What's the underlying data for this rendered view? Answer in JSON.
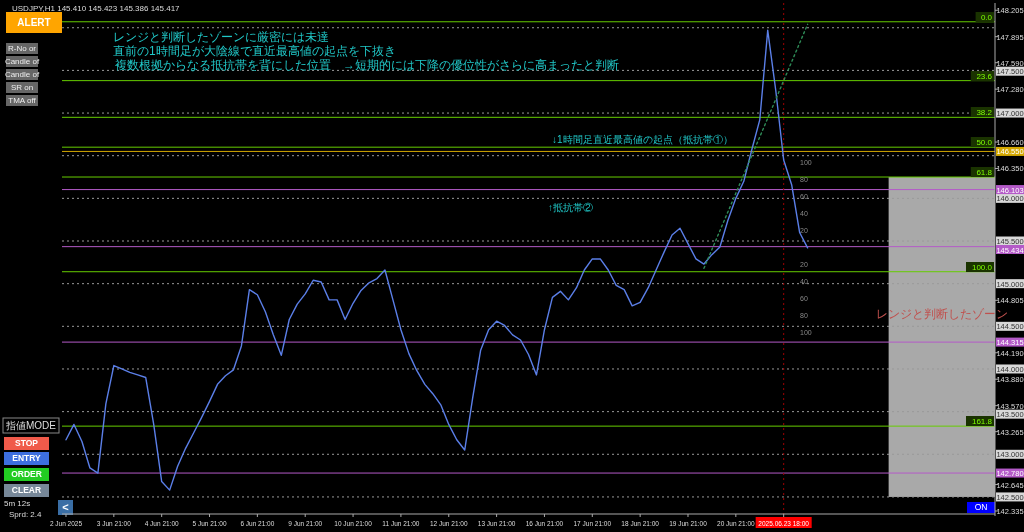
{
  "chart_data": {
    "type": "line",
    "title": "USDJPY,H1 145.410 145.423 145.386 145.417",
    "categories": [
      "2 Jun 2025",
      null,
      null,
      null,
      null,
      null,
      "3 Jun 21:00",
      null,
      null,
      null,
      null,
      null,
      "4 Jun 21:00",
      null,
      null,
      null,
      null,
      null,
      "5 Jun 21:00",
      null,
      null,
      null,
      null,
      null,
      "6 Jun 21:00",
      null,
      null,
      null,
      null,
      null,
      "9 Jun 21:00",
      null,
      null,
      null,
      null,
      null,
      "10 Jun 21:00",
      null,
      null,
      null,
      null,
      null,
      "11 Jun 21:00",
      null,
      null,
      null,
      null,
      null,
      "12 Jun 21:00",
      null,
      null,
      null,
      null,
      null,
      "13 Jun 21:00",
      null,
      null,
      null,
      null,
      null,
      "16 Jun 21:00",
      null,
      null,
      null,
      null,
      null,
      "17 Jun 21:00",
      null,
      null,
      null,
      null,
      null,
      "18 Jun 21:00",
      null,
      null,
      null,
      null,
      null,
      "19 Jun 21:00",
      null,
      null,
      null,
      null,
      null,
      "20 Jun 21:00",
      null,
      null,
      null,
      null,
      null,
      "2025.06.23 18:00",
      null,
      null,
      null,
      null,
      null,
      null,
      null,
      null,
      null,
      null,
      null,
      null,
      null,
      null,
      null,
      null,
      null,
      null,
      null,
      null,
      null,
      null,
      null,
      null,
      null,
      null
    ],
    "series": [
      {
        "color": "#5b7fe8",
        "values": [
          143.17,
          143.35,
          143.15,
          142.84,
          142.78,
          143.59,
          144.04,
          144.0,
          143.96,
          143.93,
          143.9,
          143.35,
          142.68,
          142.58,
          142.86,
          143.07,
          143.25,
          143.43,
          143.62,
          143.82,
          143.92,
          143.99,
          144.27,
          144.93,
          144.87,
          144.67,
          144.4,
          144.16,
          144.58,
          144.76,
          144.88,
          145.04,
          145.02,
          144.81,
          144.81,
          144.58,
          144.77,
          144.92,
          145.01,
          145.06,
          145.16,
          144.81,
          144.46,
          144.18,
          143.98,
          143.82,
          143.71,
          143.58,
          143.35,
          143.17,
          143.05,
          143.66,
          144.22,
          144.46,
          144.56,
          144.51,
          144.4,
          144.34,
          144.17,
          143.93,
          144.46,
          144.84,
          144.91,
          144.81,
          144.95,
          145.16,
          145.29,
          145.29,
          145.16,
          144.98,
          144.93,
          144.74,
          144.78,
          144.95,
          145.16,
          145.37,
          145.57,
          145.65,
          145.47,
          145.29,
          145.23,
          145.34,
          145.43,
          145.74,
          146.0,
          146.2,
          146.57,
          146.92,
          147.97,
          147.27,
          146.45,
          146.16,
          145.6,
          145.42,
          null,
          null,
          null,
          null,
          null,
          null,
          null,
          null,
          null,
          null,
          null,
          null,
          null,
          null,
          null,
          null,
          null,
          null,
          null,
          null,
          null,
          null,
          null
        ]
      },
      {
        "color": "#2e8b57",
        "line_style": "dotted",
        "values": [
          null,
          null,
          null,
          null,
          null,
          null,
          null,
          null,
          null,
          null,
          null,
          null,
          null,
          null,
          null,
          null,
          null,
          null,
          null,
          null,
          null,
          null,
          null,
          null,
          null,
          null,
          null,
          null,
          null,
          null,
          null,
          null,
          null,
          null,
          null,
          null,
          null,
          null,
          null,
          null,
          null,
          null,
          null,
          null,
          null,
          null,
          null,
          null,
          null,
          null,
          null,
          null,
          null,
          null,
          null,
          null,
          null,
          null,
          null,
          null,
          null,
          null,
          null,
          null,
          null,
          null,
          null,
          null,
          null,
          null,
          null,
          null,
          null,
          null,
          null,
          null,
          null,
          null,
          null,
          null,
          145.18,
          145.4,
          145.62,
          145.84,
          146.06,
          146.28,
          146.5,
          146.72,
          146.94,
          147.16,
          147.38,
          147.6,
          147.82,
          148.04,
          null,
          null,
          null,
          null,
          null,
          null,
          null,
          null,
          null,
          null,
          null,
          null,
          null,
          null,
          null,
          null,
          null,
          null,
          null,
          null,
          null,
          null,
          null
        ]
      }
    ],
    "ylim": [
      142.3,
      148.29
    ],
    "yticks": [
      148.205,
      147.895,
      {
        "value": 147.59,
        "label": "147.590"
      },
      {
        "value": 147.28,
        "label": "147.280"
      },
      {
        "value": 146.66,
        "label": "146.660"
      },
      {
        "value": 146.35,
        "label": "146.350"
      },
      144.805,
      {
        "value": 144.19,
        "label": "144.190"
      },
      {
        "value": 143.88,
        "label": "143.880"
      },
      {
        "value": 143.57,
        "label": "143.570"
      },
      143.265,
      142.645,
      142.335
    ],
    "bands": [
      {
        "axis": "y",
        "from": 142.5,
        "to": 146.25,
        "label": "レンジと判断したゾーン",
        "color": "#a9a9a9"
      }
    ],
    "ref_lines": [
      {
        "axis": "y",
        "value": 148.0,
        "color": "#9a9a9a",
        "line_style": "dotted"
      },
      {
        "axis": "y",
        "value": 147.5,
        "label": "147.500",
        "color": "#9a9a9a",
        "line_style": "dotted"
      },
      {
        "axis": "y",
        "value": 147.0,
        "label": "147.000",
        "color": "#9a9a9a",
        "line_style": "dotted"
      },
      {
        "axis": "y",
        "value": 146.5,
        "color": "#9a9a9a",
        "line_style": "dotted"
      },
      {
        "axis": "y",
        "value": 146.0,
        "label": "146.000",
        "color": "#9a9a9a",
        "line_style": "dotted"
      },
      {
        "axis": "y",
        "value": 145.5,
        "label": "145.500",
        "color": "#9a9a9a",
        "line_style": "dotted"
      },
      {
        "axis": "y",
        "value": 145.0,
        "label": "145.000",
        "color": "#9a9a9a",
        "line_style": "dotted"
      },
      {
        "axis": "y",
        "value": 144.5,
        "label": "144.500",
        "color": "#9a9a9a",
        "line_style": "dotted"
      },
      {
        "axis": "y",
        "value": 144.0,
        "label": "144.000",
        "color": "#9a9a9a",
        "line_style": "dotted"
      },
      {
        "axis": "y",
        "value": 143.5,
        "label": "143.500",
        "color": "#9a9a9a",
        "line_style": "dotted"
      },
      {
        "axis": "y",
        "value": 143.0,
        "label": "143.000",
        "color": "#9a9a9a",
        "line_style": "dotted"
      },
      {
        "axis": "y",
        "value": 142.5,
        "label": "142.500",
        "color": "#9a9a9a",
        "line_style": "dotted"
      },
      {
        "axis": "y",
        "value": 146.55,
        "label": "146.550",
        "color": "#d4a800",
        "line_style": "solid"
      },
      {
        "axis": "y",
        "value": 146.103,
        "label": "146.103",
        "color": "#b45ac8",
        "line_style": "solid"
      },
      {
        "axis": "y",
        "value": 145.434,
        "label": "145.434",
        "color": "#b45ac8",
        "line_style": "solid"
      },
      {
        "axis": "y",
        "value": 144.315,
        "label": "144.315",
        "color": "#b45ac8",
        "line_style": "solid"
      },
      {
        "axis": "y",
        "value": 142.78,
        "label": "142.780",
        "color": "#b45ac8",
        "line_style": "solid"
      },
      {
        "axis": "y",
        "value": 148.07,
        "color": "#66cc00",
        "line_style": "solid"
      },
      {
        "axis": "y",
        "value": 147.38,
        "color": "#66cc00",
        "line_style": "solid"
      },
      {
        "axis": "y",
        "value": 146.95,
        "color": "#66cc00",
        "line_style": "solid"
      },
      {
        "axis": "y",
        "value": 146.6,
        "color": "#66cc00",
        "line_style": "solid"
      },
      {
        "axis": "y",
        "value": 146.25,
        "color": "#66cc00",
        "line_style": "solid"
      },
      {
        "axis": "y",
        "value": 145.14,
        "color": "#66cc00",
        "line_style": "solid"
      },
      {
        "axis": "y",
        "value": 143.33,
        "color": "#66cc00",
        "line_style": "solid"
      },
      {
        "axis": "x",
        "value": "2025.06.23 18:00",
        "color": "#a00000",
        "line_style": "dotted"
      }
    ],
    "annotations": [
      "ALERT",
      "R-No or",
      "Candle of",
      "Candle of",
      "SR on",
      "TMA off",
      "レンジと判断したゾーンに厳密には未達",
      "直前の1時間足が大陰線で直近最高値の起点を下抜き",
      "複数根拠からなる抵抗帯を背にした位置　→短期的には下降の優位性がさらに高まったと判断",
      "↓1時間足直近最高値の起点（抵抗帯①）",
      "↑抵抗帯②",
      "指値MODE",
      "STOP",
      "ENTRY",
      "ORDER",
      "CLEAR",
      "5m 12s",
      "Sprd: 2.4",
      "<",
      "ON",
      "100",
      "80",
      "60",
      "40",
      "20",
      "20",
      "40",
      "60",
      "80",
      "100",
      "0.0",
      "23.6",
      "38.2",
      "50.0",
      "61.8",
      "100.0",
      "161.8"
    ],
    "grid": false
  }
}
